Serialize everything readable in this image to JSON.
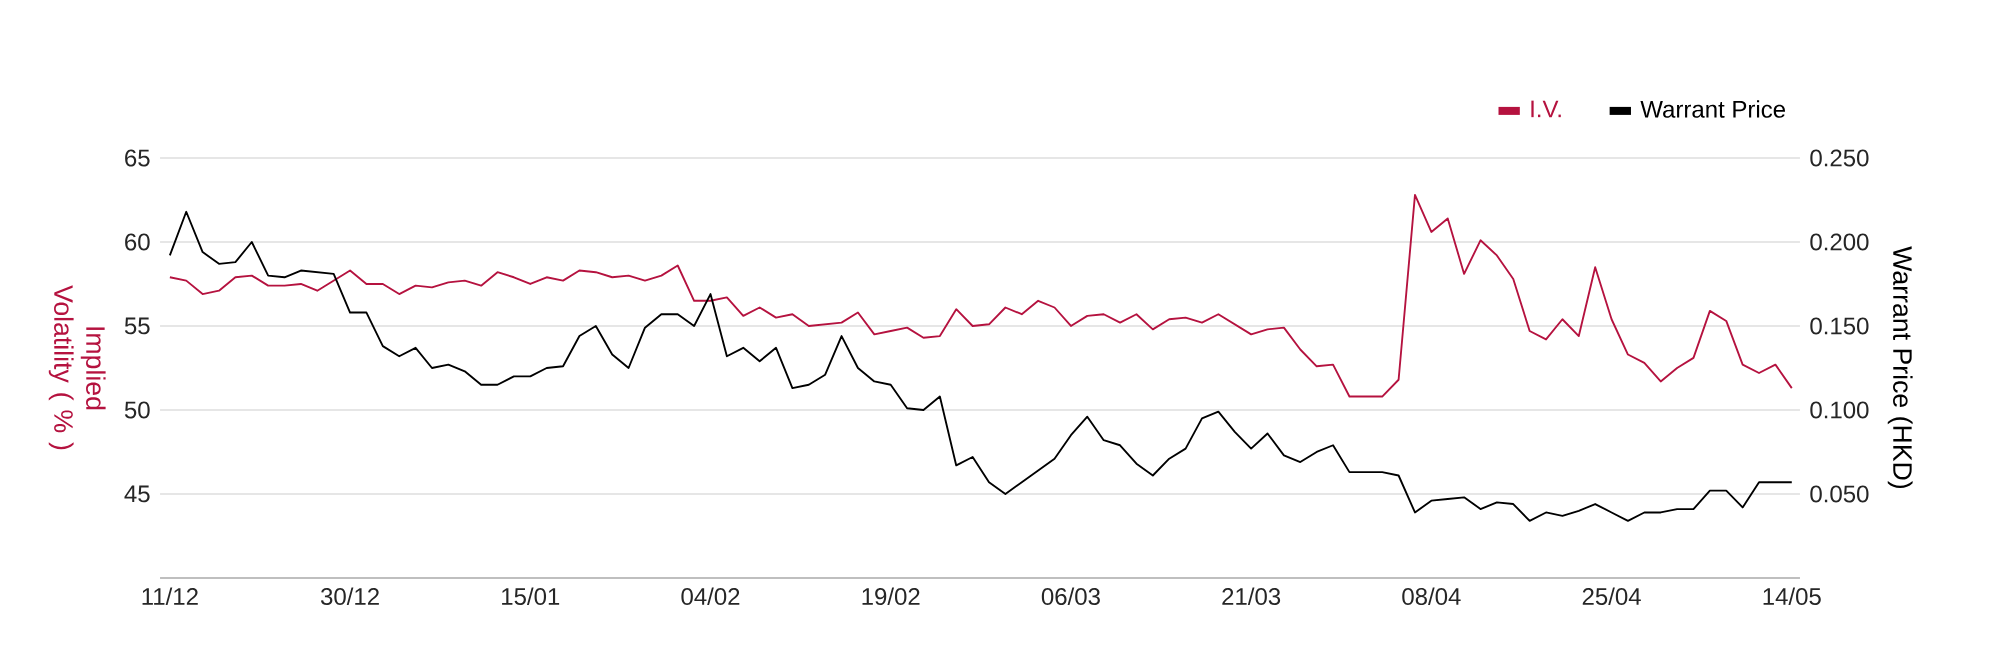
{
  "chart_data": {
    "type": "line",
    "ylabel": "Implied Volatility ( % )",
    "y2label": "Warrant Price (HKD)",
    "categories": [
      "11/12",
      null,
      null,
      null,
      null,
      null,
      null,
      null,
      null,
      null,
      null,
      "30/12",
      null,
      null,
      null,
      null,
      null,
      null,
      null,
      null,
      null,
      null,
      "15/01",
      null,
      null,
      null,
      null,
      null,
      null,
      null,
      null,
      null,
      null,
      "04/02",
      null,
      null,
      null,
      null,
      null,
      null,
      null,
      null,
      null,
      null,
      "19/02",
      null,
      null,
      null,
      null,
      null,
      null,
      null,
      null,
      null,
      null,
      "06/03",
      null,
      null,
      null,
      null,
      null,
      null,
      null,
      null,
      null,
      null,
      "21/03",
      null,
      null,
      null,
      null,
      null,
      null,
      null,
      null,
      null,
      null,
      "08/04",
      null,
      null,
      null,
      null,
      null,
      null,
      null,
      null,
      null,
      null,
      "25/04",
      null,
      null,
      null,
      null,
      null,
      null,
      null,
      null,
      null,
      null,
      "14/05"
    ],
    "series": [
      {
        "name": "I.V.",
        "color": "#b5123f",
        "values": [
          57.9,
          57.7,
          56.9,
          57.1,
          57.9,
          58.0,
          57.4,
          57.4,
          57.5,
          57.1,
          57.7,
          58.3,
          57.5,
          57.5,
          56.9,
          57.4,
          57.3,
          57.6,
          57.7,
          57.4,
          58.2,
          57.9,
          57.5,
          57.9,
          57.7,
          58.3,
          58.2,
          57.9,
          58.0,
          57.7,
          58.0,
          58.6,
          56.5,
          56.5,
          56.7,
          55.6,
          56.1,
          55.5,
          55.7,
          55.0,
          55.1,
          55.2,
          55.8,
          54.5,
          54.7,
          54.9,
          54.3,
          54.4,
          56.0,
          55.0,
          55.1,
          56.1,
          55.7,
          56.5,
          56.1,
          55.0,
          55.6,
          55.7,
          55.2,
          55.7,
          54.8,
          55.4,
          55.5,
          55.2,
          55.7,
          55.1,
          54.5,
          54.8,
          54.9,
          53.6,
          52.6,
          52.7,
          50.8,
          50.8,
          50.8,
          51.8,
          62.8,
          60.6,
          61.4,
          58.1,
          60.1,
          59.2,
          57.8,
          54.7,
          54.2,
          55.4,
          54.4,
          58.5,
          55.4,
          53.3,
          52.8,
          51.7,
          52.5,
          53.1,
          55.9,
          55.3,
          52.7,
          52.2,
          52.7,
          51.3
        ]
      },
      {
        "name": "Warrant Price",
        "color": "#000000",
        "axis": "y2",
        "values": [
          0.192,
          0.218,
          0.194,
          0.187,
          0.188,
          0.2,
          0.18,
          0.179,
          0.183,
          0.182,
          0.181,
          0.158,
          0.158,
          0.138,
          0.132,
          0.137,
          0.125,
          0.127,
          0.123,
          0.115,
          0.115,
          0.12,
          0.12,
          0.125,
          0.126,
          0.144,
          0.15,
          0.133,
          0.125,
          0.149,
          0.157,
          0.157,
          0.15,
          0.169,
          0.132,
          0.137,
          0.129,
          0.137,
          0.113,
          0.115,
          0.121,
          0.144,
          0.125,
          0.117,
          0.115,
          0.101,
          0.1,
          0.108,
          0.067,
          0.072,
          0.057,
          0.05,
          0.057,
          0.064,
          0.071,
          0.085,
          0.096,
          0.082,
          0.079,
          0.068,
          0.061,
          0.071,
          0.077,
          0.095,
          0.099,
          0.087,
          0.077,
          0.086,
          0.073,
          0.069,
          0.075,
          0.079,
          0.063,
          0.063,
          0.063,
          0.061,
          0.039,
          0.046,
          0.047,
          0.048,
          0.041,
          0.045,
          0.044,
          0.034,
          0.039,
          0.037,
          0.04,
          0.044,
          0.039,
          0.034,
          0.039,
          0.039,
          0.041,
          0.041,
          0.052,
          0.052,
          0.042,
          0.057,
          0.057,
          0.057
        ]
      }
    ],
    "ylim": [
      40,
      65
    ],
    "yticks": [
      45,
      50,
      55,
      60,
      65
    ],
    "y2lim": [
      0,
      0.25
    ],
    "y2ticks": [
      {
        "value": 0.05,
        "label": "0.050"
      },
      {
        "value": 0.1,
        "label": "0.100"
      },
      {
        "value": 0.15,
        "label": "0.150"
      },
      {
        "value": 0.2,
        "label": "0.200"
      },
      {
        "value": 0.25,
        "label": "0.250"
      }
    ],
    "grid": "y",
    "legend": "top right",
    "marker": "none",
    "line_style": "solid"
  }
}
